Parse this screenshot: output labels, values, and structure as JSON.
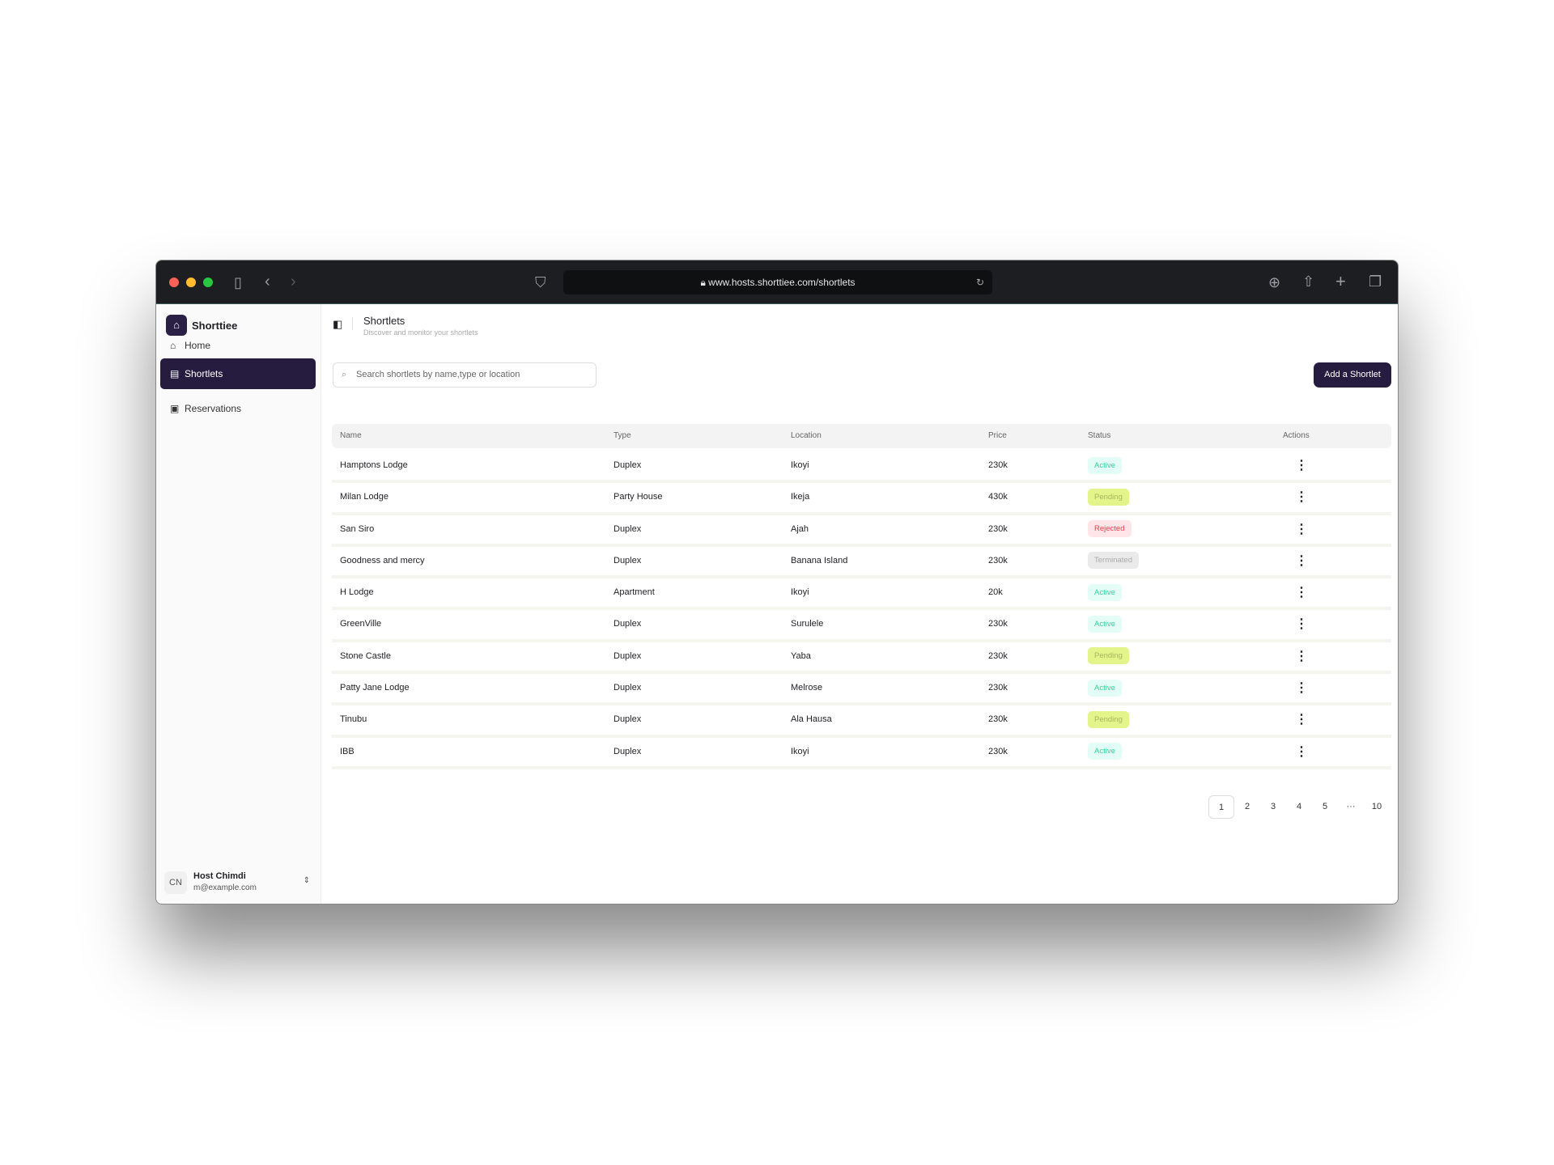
{
  "browser": {
    "url": "www.hosts.shorttiee.com/shortlets"
  },
  "sidebar": {
    "brand": "Shorttiee",
    "items": [
      {
        "label": "Home",
        "icon": "home-icon"
      },
      {
        "label": "Shortlets",
        "icon": "building-icon",
        "active": true
      },
      {
        "label": "Reservations",
        "icon": "calendar-icon"
      }
    ],
    "user": {
      "initials": "CN",
      "name": "Host Chimdi",
      "email": "m@example.com"
    }
  },
  "header": {
    "title": "Shortlets",
    "subtitle": "Discover and monitor your shortlets"
  },
  "search": {
    "placeholder": "Search shortlets by name,type or location"
  },
  "add_button": "Add a Shortlet",
  "table": {
    "columns": [
      "Name",
      "Type",
      "Location",
      "Price",
      "Status",
      "Actions"
    ],
    "rows": [
      {
        "name": "Hamptons Lodge",
        "type": "Duplex",
        "location": "Ikoyi",
        "price": "230k",
        "status": "Active"
      },
      {
        "name": "Milan Lodge",
        "type": "Party House",
        "location": "Ikeja",
        "price": "430k",
        "status": "Pending"
      },
      {
        "name": "San Siro",
        "type": "Duplex",
        "location": "Ajah",
        "price": "230k",
        "status": "Rejected"
      },
      {
        "name": "Goodness and mercy",
        "type": "Duplex",
        "location": "Banana Island",
        "price": "230k",
        "status": "Terminated"
      },
      {
        "name": "H Lodge",
        "type": "Apartment",
        "location": "Ikoyi",
        "price": "20k",
        "status": "Active"
      },
      {
        "name": "GreenVille",
        "type": "Duplex",
        "location": "Surulele",
        "price": "230k",
        "status": "Active"
      },
      {
        "name": "Stone Castle",
        "type": "Duplex",
        "location": "Yaba",
        "price": "230k",
        "status": "Pending"
      },
      {
        "name": "Patty Jane Lodge",
        "type": "Duplex",
        "location": "Melrose",
        "price": "230k",
        "status": "Active"
      },
      {
        "name": "Tinubu",
        "type": "Duplex",
        "location": "Ala Hausa",
        "price": "230k",
        "status": "Pending"
      },
      {
        "name": "IBB",
        "type": "Duplex",
        "location": "Ikoyi",
        "price": "230k",
        "status": "Active"
      }
    ]
  },
  "pagination": {
    "pages": [
      "1",
      "2",
      "3",
      "4",
      "5",
      "···",
      "10"
    ],
    "current": "1"
  },
  "colors": {
    "accent": "#251c40",
    "active": "#34d399",
    "pending": "#e2f48a",
    "rejected": "#ef3f4c"
  }
}
